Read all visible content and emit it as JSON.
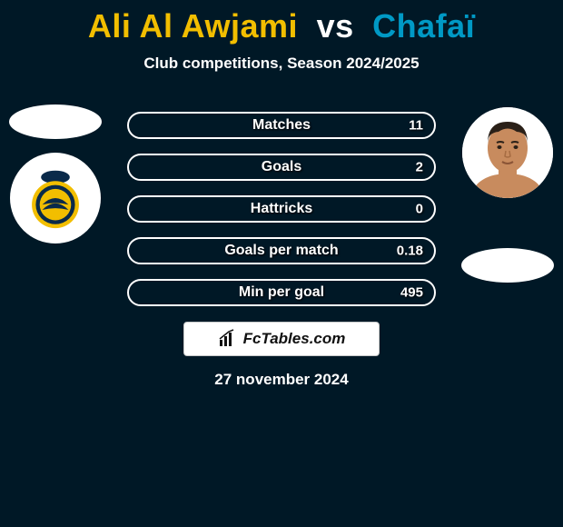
{
  "header": {
    "player1_color": "#f2be00",
    "player1": "Ali Al Awjami",
    "vs_color": "#ffffff",
    "vs": "vs",
    "player2_color": "#0099c5",
    "player2": "Chafaï"
  },
  "subtitle": "Club competitions, Season 2024/2025",
  "bars": [
    {
      "label": "Matches",
      "value": "11",
      "fill_pct": 0,
      "fill_color": "#0099c5"
    },
    {
      "label": "Goals",
      "value": "2",
      "fill_pct": 0,
      "fill_color": "#0099c5"
    },
    {
      "label": "Hattricks",
      "value": "0",
      "fill_pct": 0,
      "fill_color": "#0099c5"
    },
    {
      "label": "Goals per match",
      "value": "0.18",
      "fill_pct": 0,
      "fill_color": "#0099c5"
    },
    {
      "label": "Min per goal",
      "value": "495",
      "fill_pct": 0,
      "fill_color": "#0099c5"
    }
  ],
  "branding": "FcTables.com",
  "date": "27 november 2024",
  "colors": {
    "background": "#001826",
    "bar_border": "#ffffff",
    "text": "#ffffff",
    "brand_bg": "#ffffff",
    "brand_text": "#111111",
    "logo_navy": "#0a2a4a",
    "logo_gold": "#f2be00",
    "skin": "#c88b5e",
    "hair": "#2a2018"
  }
}
